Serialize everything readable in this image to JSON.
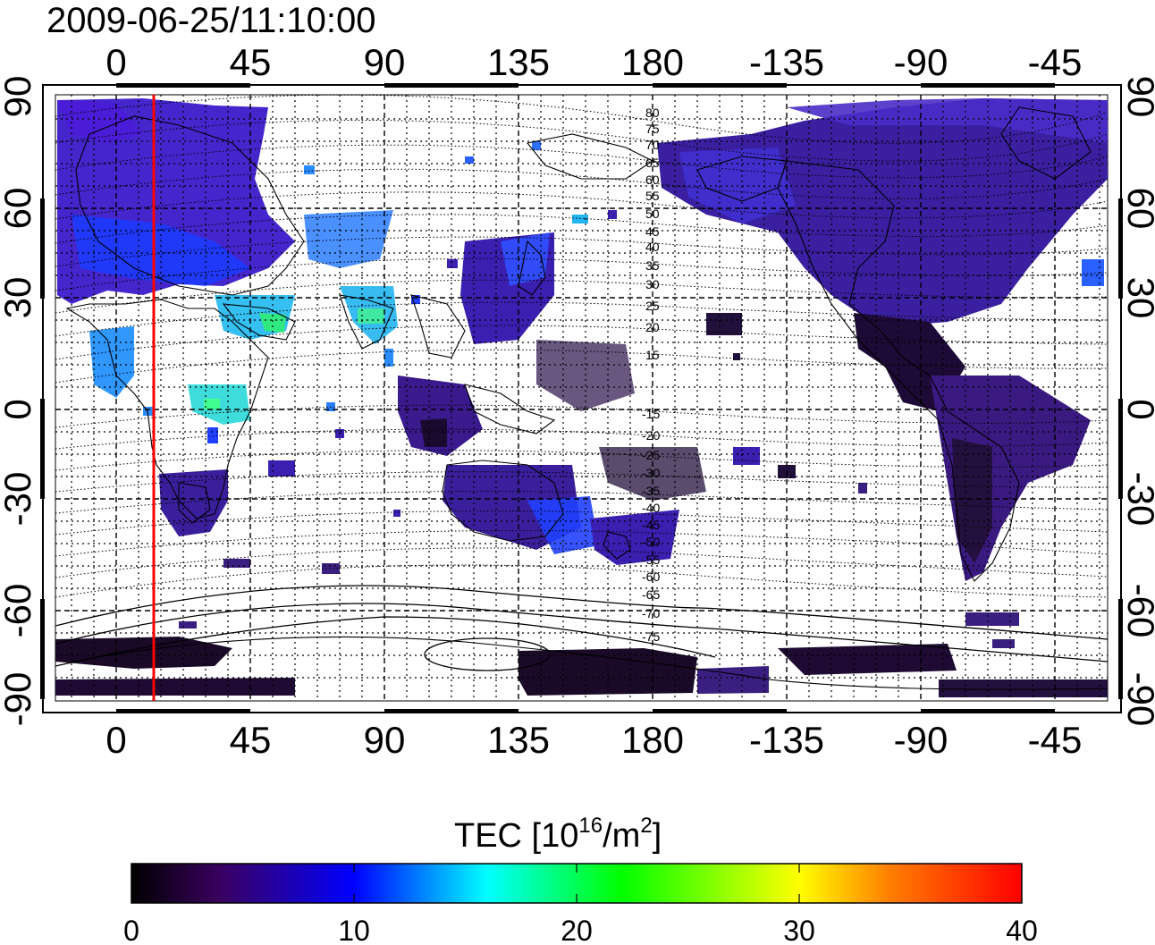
{
  "title": "2009-06-25/11:10:00",
  "map": {
    "lon_ticks": [
      "0",
      "45",
      "90",
      "135",
      "180",
      "-135",
      "-90",
      "-45"
    ],
    "lat_ticks": [
      "90",
      "60",
      "30",
      "0",
      "-30",
      "-60",
      "-90"
    ],
    "terminator_color": "#ff0000",
    "magnetic_latitude_labels": [
      "80",
      "75",
      "70",
      "65",
      "60",
      "55",
      "50",
      "45",
      "40",
      "35",
      "30",
      "25",
      "20",
      "15",
      "-15",
      "-20",
      "-25",
      "-30",
      "-35",
      "-40",
      "-45",
      "-50",
      "-55",
      "-60",
      "-65",
      "-70",
      "-75"
    ]
  },
  "colorbar": {
    "label_main": "TEC  [10",
    "label_sup1": "16",
    "label_mid": "/m",
    "label_sup2": "2",
    "label_end": "]",
    "ticks": [
      "0",
      "10",
      "20",
      "30",
      "40"
    ],
    "range": [
      0,
      40
    ],
    "colors": [
      "#000000",
      "#3a0060",
      "#0000ff",
      "#00ffff",
      "#00ff00",
      "#ffff00",
      "#ff8000",
      "#ff0000"
    ]
  }
}
